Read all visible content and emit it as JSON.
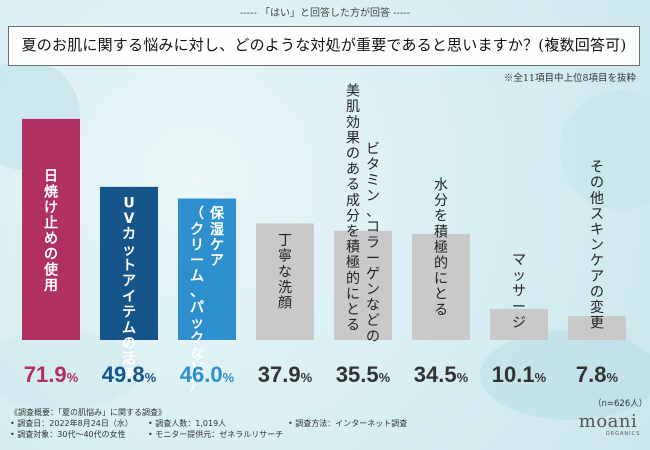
{
  "header_note": "----- 「はい」と回答した方が回答 -----",
  "question": "夏のお肌に関する悩みに対し、どのような対処が重要であると思いますか？(複数回答可)",
  "footnote": "※全11項目中上位8項目を抜粋",
  "chart_data": {
    "type": "bar",
    "title": "夏のお肌に関する悩みに対し、どのような対処が重要であると思いますか？(複数回答可)",
    "categories": [
      "日焼け止めの使用",
      "UVカットアイテムの活用",
      "保湿ケア（クリーム、パックなど）",
      "丁寧な洗顔",
      "美肌効果のある成分（ビタミン、コラーゲンなど）をとる",
      "水分を積極的にとる",
      "マッサージ",
      "その他スキンケアの変更"
    ],
    "values": [
      71.9,
      49.8,
      46.0,
      37.9,
      35.5,
      34.5,
      10.1,
      7.8
    ],
    "value_labels": [
      "71.9",
      "49.8",
      "46.0",
      "37.9",
      "35.5",
      "34.5",
      "10.1",
      "7.8"
    ],
    "unit": "%",
    "ylim": [
      0,
      80
    ],
    "bar_text_columns": [
      [
        "日焼け止めの使用"
      ],
      [
        "UVカットアイテムの活用"
      ],
      [
        "保湿ケア",
        "（クリーム、パックなど）"
      ],
      [
        "丁寧な洗顔"
      ],
      [
        "ビタミン、コラーゲンなどの",
        "美肌効果のある成分を積極的にとる"
      ],
      [
        "水分を積極的にとる"
      ],
      [
        "マッサージ"
      ],
      [
        "その他スキンケアの変更"
      ]
    ],
    "colors": [
      "#b03060",
      "#15558a",
      "#2e8fce",
      "#c9c9c9",
      "#c9c9c9",
      "#c9c9c9",
      "#c9c9c9",
      "#c9c9c9"
    ],
    "label_colors": [
      "#b03060",
      "#15558a",
      "#2e8fce",
      "#333333",
      "#333333",
      "#333333",
      "#333333",
      "#333333"
    ],
    "grid": false
  },
  "sample_size": "（n=626人）",
  "survey": {
    "title": "《調査概要：「夏の肌悩み」に関する調査》",
    "date": "• 調査日：2022年8月24日（水）",
    "count": "• 調査人数：1,019人",
    "method": "• 調査方法：インターネット調査",
    "target": "• 調査対象：30代〜40代の女性",
    "provider": "• モニター提供元：ゼネラルリサーチ"
  },
  "logo": {
    "name": "moani",
    "sub": "ORGANICS"
  }
}
